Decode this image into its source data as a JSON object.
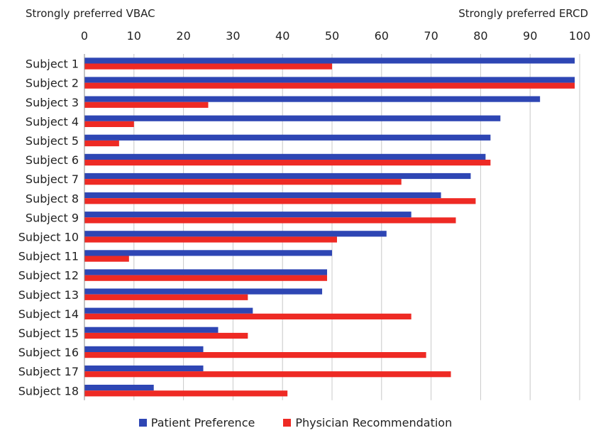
{
  "chart_data": {
    "type": "bar",
    "orientation": "horizontal",
    "left_end_label": "Strongly preferred VBAC",
    "right_end_label": "Strongly preferred ERCD",
    "xlim": [
      0,
      100
    ],
    "xticks": [
      0,
      10,
      20,
      30,
      40,
      50,
      60,
      70,
      80,
      90,
      100
    ],
    "x_axis_position": "top",
    "grid": "vertical",
    "legend_position": "bottom",
    "categories": [
      "Subject 1",
      "Subject 2",
      "Subject 3",
      "Subject 4",
      "Subject 5",
      "Subject 6",
      "Subject 7",
      "Subject 8",
      "Subject 9",
      "Subject 10",
      "Subject 11",
      "Subject 12",
      "Subject 13",
      "Subject 14",
      "Subject 15",
      "Subject 16",
      "Subject 17",
      "Subject 18"
    ],
    "series": [
      {
        "name": "Patient Preference",
        "color": "#2e46b4",
        "values": [
          99,
          99,
          92,
          84,
          82,
          81,
          78,
          72,
          66,
          61,
          50,
          49,
          48,
          34,
          27,
          24,
          24,
          14
        ]
      },
      {
        "name": "Physician Recommendation",
        "color": "#ee2a24",
        "values": [
          50,
          99,
          25,
          10,
          7,
          82,
          64,
          79,
          75,
          51,
          9,
          49,
          33,
          66,
          33,
          69,
          74,
          41
        ]
      }
    ]
  }
}
